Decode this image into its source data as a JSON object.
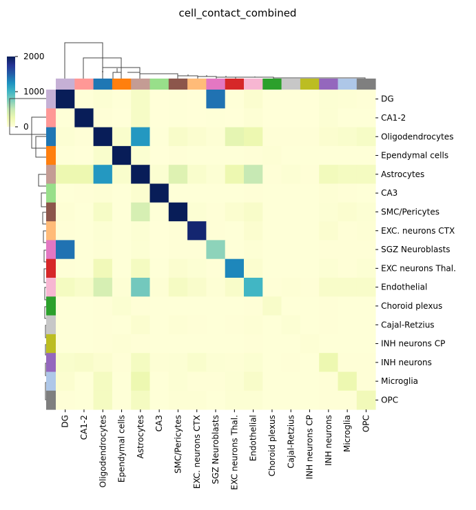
{
  "chart_data": {
    "type": "heatmap",
    "title": "cell_contact_combined",
    "xlabel": "",
    "ylabel": "",
    "labels": [
      "DG",
      "CA1-2",
      "Oligodendrocytes",
      "Ependymal cells",
      "Astrocytes",
      "CA3",
      "SMC/Pericytes",
      "EXC. neurons CTX",
      "SGZ Neuroblasts",
      "EXC neurons Thal.",
      "Endothelial",
      "Choroid plexus",
      "Cajal-Retzius",
      "INH neurons CP",
      "INH neurons",
      "Microglia",
      "OPC"
    ],
    "label_colors": [
      "#c5b0d5",
      "#ff9896",
      "#1f77b4",
      "#ff7f0e",
      "#c49c94",
      "#98df8a",
      "#8c564b",
      "#ffbb78",
      "#e377c2",
      "#d62728",
      "#f7b6d2",
      "#2ca02c",
      "#c7c7c7",
      "#bcbd22",
      "#9467bd",
      "#aec7e8",
      "#7f7f7f"
    ],
    "colorbar": {
      "min": 0,
      "max": 2000,
      "ticks": [
        0,
        1000,
        2000
      ],
      "colormap": "YlGnBu"
    },
    "values": [
      [
        2000,
        10,
        40,
        10,
        120,
        5,
        15,
        5,
        1400,
        10,
        60,
        5,
        5,
        5,
        40,
        30,
        20
      ],
      [
        10,
        2000,
        20,
        5,
        120,
        5,
        10,
        5,
        10,
        5,
        30,
        5,
        5,
        5,
        40,
        10,
        10
      ],
      [
        40,
        20,
        2000,
        80,
        1200,
        10,
        100,
        60,
        30,
        300,
        250,
        20,
        20,
        20,
        60,
        80,
        120
      ],
      [
        10,
        5,
        80,
        2000,
        50,
        5,
        20,
        10,
        10,
        10,
        20,
        30,
        10,
        10,
        10,
        10,
        10
      ],
      [
        250,
        250,
        1200,
        80,
        2000,
        50,
        350,
        80,
        40,
        250,
        500,
        20,
        40,
        20,
        180,
        150,
        150
      ],
      [
        10,
        20,
        30,
        10,
        60,
        2000,
        10,
        10,
        10,
        10,
        20,
        10,
        10,
        10,
        30,
        20,
        10
      ],
      [
        30,
        10,
        120,
        10,
        400,
        10,
        2000,
        40,
        20,
        60,
        100,
        10,
        10,
        10,
        40,
        60,
        40
      ],
      [
        20,
        10,
        40,
        10,
        40,
        5,
        20,
        1900,
        20,
        10,
        60,
        10,
        10,
        10,
        60,
        20,
        30
      ],
      [
        1400,
        10,
        30,
        10,
        40,
        5,
        20,
        20,
        700,
        10,
        30,
        10,
        10,
        10,
        20,
        20,
        20
      ],
      [
        20,
        10,
        200,
        10,
        150,
        10,
        60,
        40,
        20,
        1300,
        60,
        10,
        10,
        10,
        40,
        20,
        40
      ],
      [
        150,
        100,
        400,
        30,
        800,
        30,
        140,
        90,
        30,
        100,
        1000,
        20,
        30,
        20,
        100,
        100,
        100
      ],
      [
        10,
        10,
        20,
        50,
        20,
        10,
        10,
        10,
        10,
        10,
        20,
        100,
        10,
        10,
        20,
        10,
        10
      ],
      [
        10,
        10,
        20,
        10,
        60,
        10,
        30,
        20,
        10,
        20,
        30,
        10,
        40,
        10,
        20,
        10,
        10
      ],
      [
        10,
        10,
        20,
        30,
        20,
        10,
        10,
        10,
        10,
        10,
        20,
        10,
        10,
        30,
        10,
        10,
        10
      ],
      [
        80,
        100,
        60,
        20,
        150,
        30,
        40,
        80,
        40,
        30,
        50,
        10,
        20,
        10,
        250,
        20,
        20
      ],
      [
        60,
        10,
        150,
        10,
        250,
        10,
        40,
        20,
        20,
        40,
        100,
        10,
        10,
        10,
        20,
        250,
        20
      ],
      [
        20,
        10,
        150,
        10,
        150,
        10,
        30,
        30,
        10,
        40,
        40,
        10,
        10,
        10,
        20,
        20,
        200
      ]
    ]
  }
}
